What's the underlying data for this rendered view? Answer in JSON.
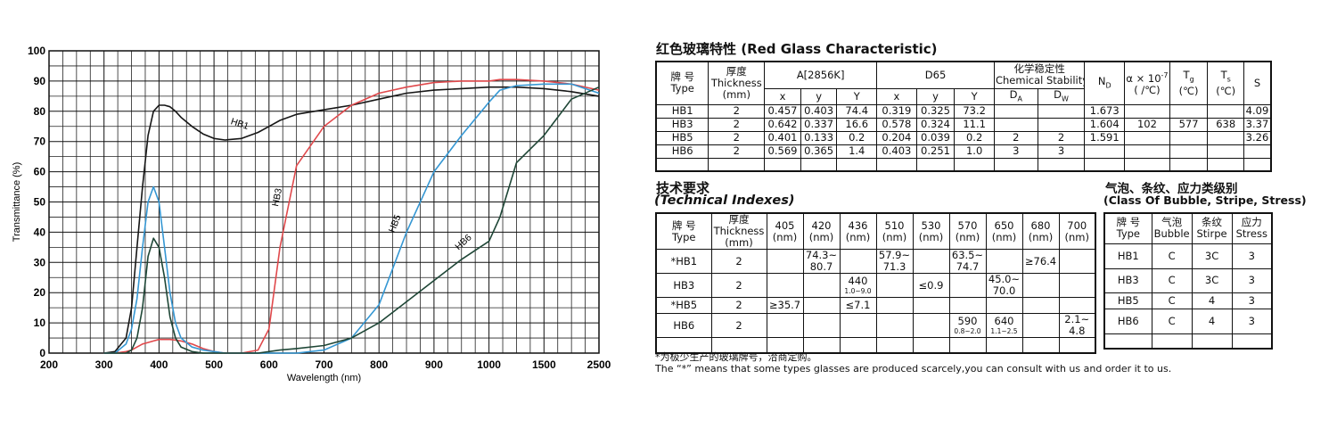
{
  "chart_data": {
    "type": "line",
    "xlabel": "Wavelength (nm)",
    "ylabel": "Transmittance (%)",
    "x": [
      300,
      320,
      340,
      350,
      360,
      370,
      380,
      390,
      400,
      410,
      420,
      430,
      440,
      460,
      480,
      500,
      520,
      550,
      580,
      600,
      620,
      650,
      700,
      750,
      800,
      850,
      900,
      950,
      1000,
      1100,
      1250,
      1500,
      2000,
      2500
    ],
    "xlim": [
      200,
      2500
    ],
    "xticks": [
      200,
      300,
      400,
      500,
      600,
      700,
      800,
      900,
      1000,
      1500,
      2500
    ],
    "ylim": [
      0,
      100
    ],
    "yticks": [
      0,
      10,
      20,
      30,
      40,
      50,
      60,
      70,
      80,
      90,
      100
    ],
    "grid": true,
    "series": [
      {
        "name": "HB1",
        "color": "#161616",
        "values": [
          0,
          0.5,
          5,
          15,
          35,
          55,
          72,
          80,
          82,
          82,
          81.5,
          80,
          78,
          75,
          72.5,
          71,
          70.5,
          71,
          73,
          75,
          77,
          79,
          80.5,
          82,
          84,
          86,
          87,
          87.5,
          88,
          88,
          88,
          87.5,
          86.5,
          85
        ]
      },
      {
        "name": "HB3",
        "color": "#e0494c",
        "values": [
          0,
          0,
          0.5,
          1,
          2,
          3,
          3.5,
          4,
          4.5,
          4.5,
          4.5,
          4.3,
          4,
          3,
          1.5,
          0.5,
          0,
          0,
          1,
          8,
          35,
          62,
          75,
          82,
          86,
          88,
          89.5,
          90,
          90,
          90.5,
          90.5,
          90,
          89,
          87
        ]
      },
      {
        "name": "HB5",
        "color": "#3597d3",
        "values": [
          0,
          0,
          3,
          8,
          18,
          35,
          50,
          55,
          50,
          35,
          20,
          10,
          5,
          2,
          1,
          0.5,
          0,
          0,
          0,
          0,
          0,
          0,
          1,
          5,
          16,
          40,
          60,
          72,
          83,
          87,
          88.5,
          89,
          89,
          86
        ]
      },
      {
        "name": "HB6",
        "color": "#1e4636",
        "values": [
          0,
          0,
          0,
          1,
          5,
          15,
          32,
          38,
          35,
          25,
          12,
          5,
          2,
          0.5,
          0,
          0,
          0,
          0,
          0,
          0.5,
          1,
          1.5,
          2.5,
          5,
          10,
          17,
          24,
          31,
          37,
          45,
          63,
          72,
          84,
          88
        ]
      }
    ]
  },
  "table1": {
    "title": "红色玻璃特性 (Red Glass Characteristic)",
    "header": {
      "type": [
        "牌 号",
        "Type"
      ],
      "thickness": [
        "厚度",
        "Thickness",
        "(mm)"
      ],
      "groups": [
        "A[2856K]",
        "D65"
      ],
      "chem": [
        "化学稳定性",
        "Chemical Stability"
      ],
      "cie": [
        "x",
        "y",
        "Y",
        "x",
        "y",
        "Y"
      ],
      "chem_sub": [
        {
          "base": "D",
          "sub": "A"
        },
        {
          "base": "D",
          "sub": "W"
        }
      ],
      "nd": {
        "base": "N",
        "sub": "D"
      },
      "alpha": {
        "base": "α × 10",
        "sup": "-7",
        "unit": "( /℃)"
      },
      "tg": {
        "base": "T",
        "sub": "g",
        "unit": "(℃)"
      },
      "ts": {
        "base": "T",
        "sub": "s",
        "unit": "(℃)"
      },
      "s": "S"
    },
    "rows": [
      [
        "HB1",
        "2",
        "0.457",
        "0.403",
        "74.4",
        "0.319",
        "0.325",
        "73.2",
        null,
        null,
        "1.673",
        null,
        null,
        null,
        "4.09"
      ],
      [
        "HB3",
        "2",
        "0.642",
        "0.337",
        "16.6",
        "0.578",
        "0.324",
        "11.1",
        null,
        null,
        "1.604",
        "102",
        "577",
        "638",
        "3.37"
      ],
      [
        "HB5",
        "2",
        "0.401",
        "0.133",
        "0.2",
        "0.204",
        "0.039",
        "0.2",
        "2",
        "2",
        "1.591",
        null,
        null,
        null,
        "3.26"
      ],
      [
        "HB6",
        "2",
        "0.569",
        "0.365",
        "1.4",
        "0.403",
        "0.251",
        "1.0",
        "3",
        "3",
        null,
        null,
        null,
        null,
        null
      ]
    ]
  },
  "table2": {
    "title": [
      "技术要求",
      "(Technical Indexes)"
    ],
    "header": {
      "type": [
        "牌 号",
        "Type"
      ],
      "thickness": [
        "厚度",
        "Thickness",
        "(mm)"
      ],
      "wavelengths": [
        {
          "wl": "405",
          "unit": "(nm)"
        },
        {
          "wl": "420",
          "unit": "(nm)"
        },
        {
          "wl": "436",
          "unit": "(nm)"
        },
        {
          "wl": "510",
          "unit": "(nm)"
        },
        {
          "wl": "530",
          "unit": "(nm)"
        },
        {
          "wl": "570",
          "unit": "(nm)"
        },
        {
          "wl": "650",
          "unit": "(nm)"
        },
        {
          "wl": "680",
          "unit": "(nm)"
        },
        {
          "wl": "700",
          "unit": "(nm)"
        }
      ]
    },
    "rows": [
      [
        "*HB1",
        "2",
        null,
        {
          "lines": [
            "74.3~",
            "80.7"
          ]
        },
        null,
        {
          "lines": [
            "57.9~",
            "71.3"
          ]
        },
        null,
        {
          "lines": [
            "63.5~",
            "74.7"
          ]
        },
        null,
        "≥76.4",
        null
      ],
      [
        "HB3",
        "2",
        null,
        null,
        {
          "main": "440",
          "note": "1.0~9.0"
        },
        null,
        "≤0.9",
        null,
        {
          "lines": [
            "45.0~",
            "70.0"
          ]
        },
        null,
        null
      ],
      [
        "*HB5",
        "2",
        "≥35.7",
        null,
        "≤7.1",
        null,
        null,
        null,
        null,
        null,
        null
      ],
      [
        "HB6",
        "2",
        null,
        null,
        null,
        null,
        null,
        {
          "main": "590",
          "note": "0.8~2.0"
        },
        {
          "main": "640",
          "note": "1.1~2.5"
        },
        null,
        {
          "lines": [
            "2.1~",
            "4.8"
          ]
        }
      ]
    ]
  },
  "table3": {
    "title": [
      "气泡、条纹、应力类级别",
      "(Class Of Bubble, Stripe, Stress)"
    ],
    "columns": [
      [
        "牌 号",
        "Type"
      ],
      [
        "气泡",
        "Bubble"
      ],
      [
        "条纹",
        "Stirpe"
      ],
      [
        "应力",
        "Stress"
      ]
    ],
    "rows": [
      [
        "HB1",
        "C",
        "3C",
        "3"
      ],
      [
        "HB3",
        "C",
        "3C",
        "3"
      ],
      [
        "HB5",
        "C",
        "4",
        "3"
      ],
      [
        "HB6",
        "C",
        "4",
        "3"
      ]
    ]
  },
  "footnotes": [
    "*为极少生产的玻璃牌号，洽商定购。",
    "The  “*” means that some types glasses are produced scarcely,you can consult with us and order it to us."
  ]
}
